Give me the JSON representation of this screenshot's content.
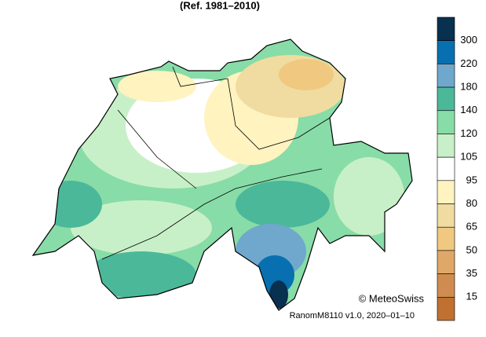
{
  "title": "(Ref. 1981–2010)",
  "legend": {
    "labels": [
      300,
      220,
      180,
      140,
      120,
      105,
      95,
      80,
      65,
      50,
      35,
      15
    ],
    "colors": [
      "#08304f",
      "#0870b0",
      "#6fa8cc",
      "#4cb89a",
      "#88dca8",
      "#c8f0c8",
      "#ffffff",
      "#fff3c0",
      "#f0dca0",
      "#f0c880",
      "#e0a868",
      "#d08c50",
      "#c07030"
    ]
  },
  "credit": "© MeteoSwiss",
  "version": "RanomM8110 v1.0, 2020–01–10"
}
